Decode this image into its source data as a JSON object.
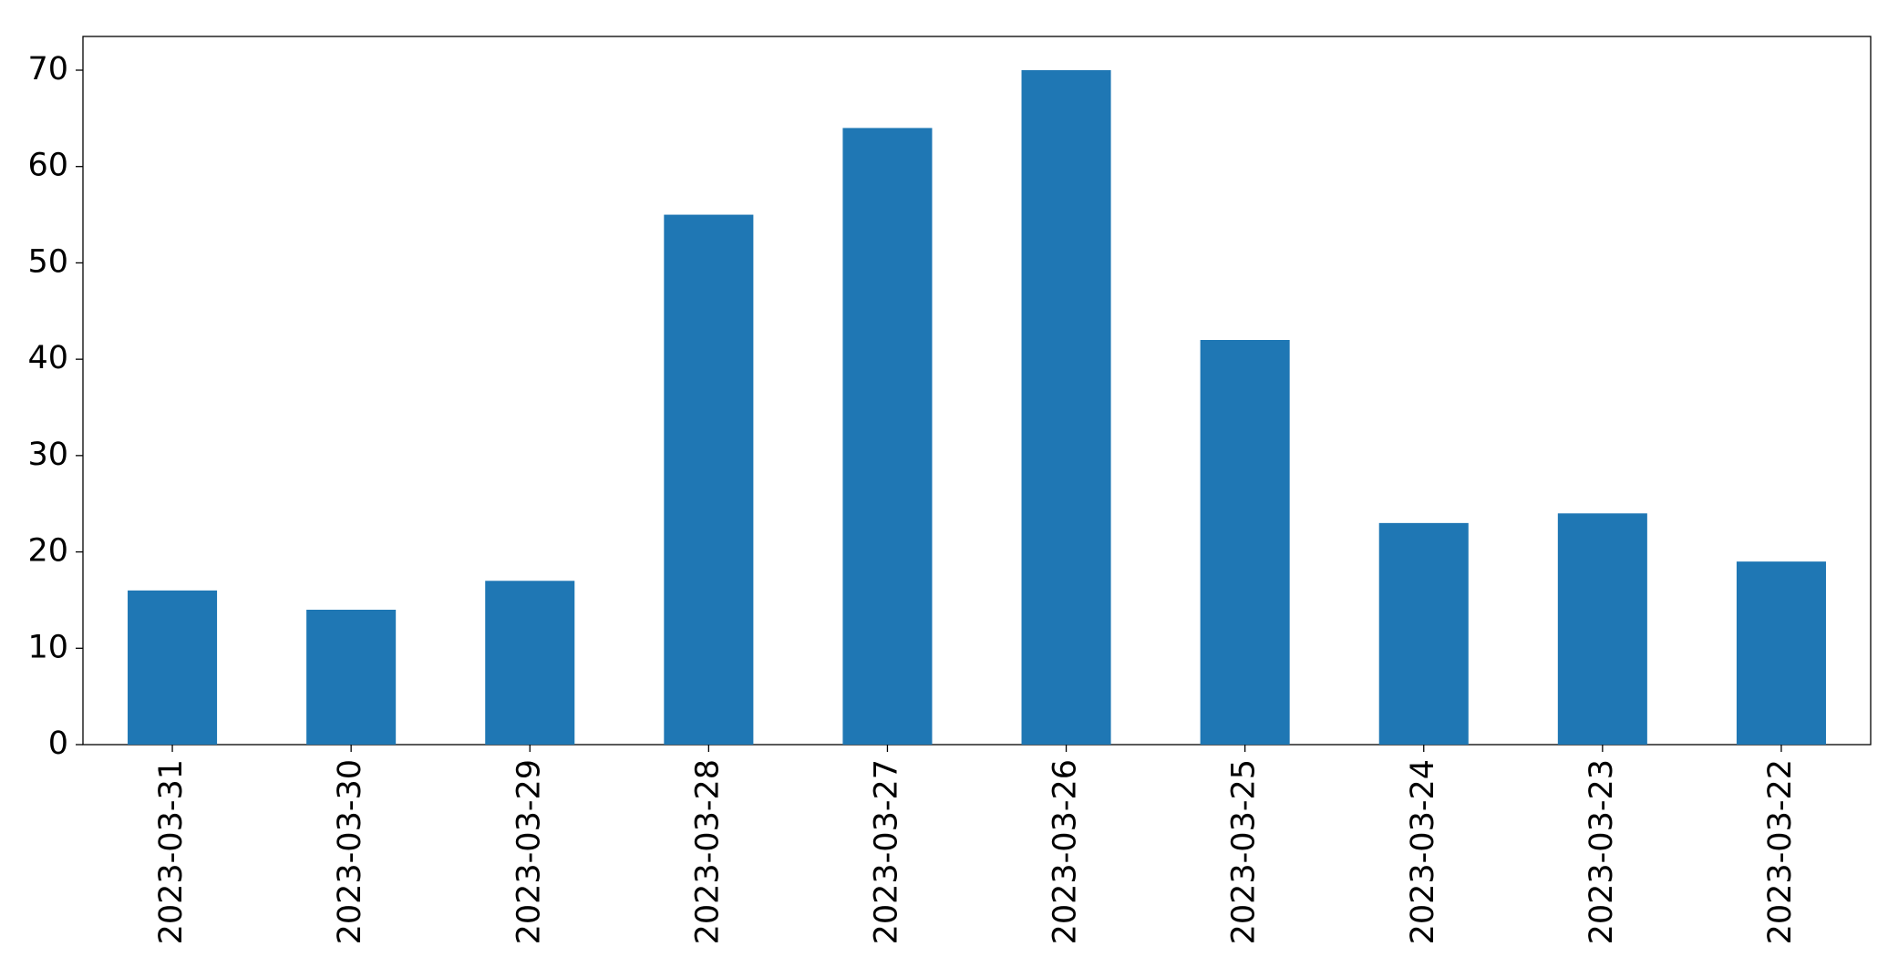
{
  "chart_data": {
    "type": "bar",
    "categories": [
      "2023-03-31",
      "2023-03-30",
      "2023-03-29",
      "2023-03-28",
      "2023-03-27",
      "2023-03-26",
      "2023-03-25",
      "2023-03-24",
      "2023-03-23",
      "2023-03-22"
    ],
    "values": [
      16,
      14,
      17,
      55,
      64,
      70,
      42,
      23,
      24,
      19
    ],
    "color": "#1f77b4",
    "ylim": [
      0,
      73.5
    ],
    "yticks": [
      0,
      10,
      20,
      30,
      40,
      50,
      60,
      70
    ],
    "grid": false
  }
}
